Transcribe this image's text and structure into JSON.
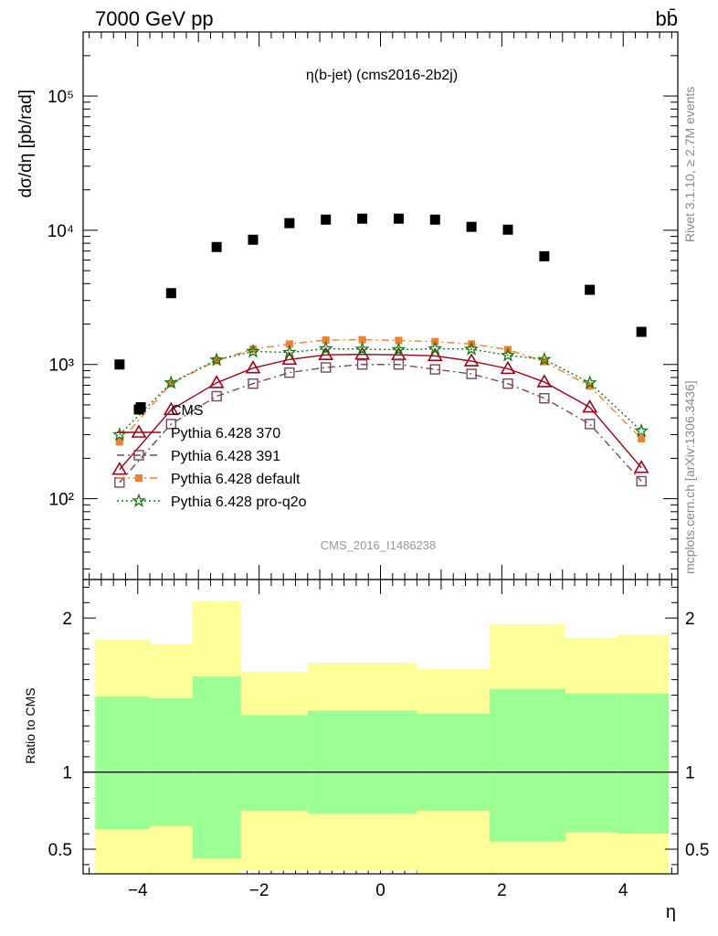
{
  "header": {
    "energy_label": "7000 GeV pp",
    "process_label": "bb̄"
  },
  "side_labels": {
    "rivet": "Rivet 3.1.10, ≥ 2.7M events",
    "mcplots": "mcplots.cern.ch [arXiv:1306.3436]"
  },
  "analysis_id": "CMS_2016_I1486238",
  "chart_data": [
    {
      "type": "scatter",
      "title": "η(b-jet) (cms2016-2b2j)",
      "ylabel": "dσ/dη [pb/rad]",
      "xlabel": "",
      "yscale": "log",
      "xlim": [
        -4.9,
        4.9
      ],
      "ylim": [
        25,
        300000
      ],
      "yticks": [
        100,
        1000,
        10000,
        100000
      ],
      "ytick_labels": [
        "10²",
        "10³",
        "10⁴",
        "10⁵"
      ],
      "x": [
        -4.3,
        -3.95,
        -3.45,
        -2.7,
        -2.1,
        -1.5,
        -0.9,
        -0.3,
        0.3,
        0.9,
        1.5,
        2.1,
        2.7,
        3.45,
        4.3
      ],
      "series": [
        {
          "name": "CMS",
          "color": "#000000",
          "marker": "square-filled",
          "values": [
            1000,
            480,
            3400,
            7500,
            8500,
            11300,
            12000,
            12200,
            12200,
            12000,
            10600,
            10100,
            6400,
            3600,
            1750
          ]
        },
        {
          "name": "Pythia 6.428 370",
          "color": "#a00018",
          "marker": "triangle-open",
          "line": "solid",
          "values": [
            165,
            null,
            460,
            730,
            940,
            1090,
            1180,
            1190,
            1180,
            1160,
            1060,
            930,
            740,
            480,
            170
          ]
        },
        {
          "name": "Pythia 6.428 391",
          "color": "#744a54",
          "marker": "square-open",
          "line": "dashdot",
          "values": [
            132,
            null,
            360,
            580,
            720,
            870,
            950,
            1000,
            1000,
            920,
            850,
            720,
            560,
            360,
            135
          ]
        },
        {
          "name": "Pythia 6.428 default",
          "color": "#f08030",
          "marker": "square-filled-small",
          "line": "dashdot",
          "values": [
            265,
            null,
            720,
            1070,
            1300,
            1420,
            1520,
            1530,
            1510,
            1480,
            1420,
            1290,
            1050,
            690,
            280
          ]
        },
        {
          "name": "Pythia 6.428 pro-q2o",
          "color": "#107810",
          "marker": "star",
          "line": "dotted",
          "values": [
            300,
            null,
            730,
            1080,
            1250,
            1230,
            1310,
            1300,
            1290,
            1310,
            1300,
            1170,
            1090,
            730,
            320
          ]
        }
      ]
    },
    {
      "type": "area",
      "ylabel": "Ratio to CMS",
      "xlabel": "η",
      "xlim": [
        -4.9,
        4.9
      ],
      "ylim": [
        0.34,
        2.25
      ],
      "xticks": [
        -4,
        -2,
        0,
        2,
        4
      ],
      "xtick_labels": [
        "−4",
        "−2",
        "0",
        "2",
        "4"
      ],
      "yticks": [
        0.5,
        1,
        2
      ],
      "ytick_labels": [
        "0.5",
        "1",
        "2"
      ],
      "bins": [
        {
          "x0": -4.7,
          "x1": -3.8,
          "inner": [
            0.63,
            1.49
          ],
          "outer": [
            0.34,
            1.86
          ]
        },
        {
          "x0": -3.8,
          "x1": -3.1,
          "inner": [
            0.65,
            1.48
          ],
          "outer": [
            0.34,
            1.83
          ]
        },
        {
          "x0": -3.1,
          "x1": -2.3,
          "inner": [
            0.44,
            1.62
          ],
          "outer": [
            0.34,
            2.11
          ]
        },
        {
          "x0": -2.3,
          "x1": -1.2,
          "inner": [
            0.75,
            1.37
          ],
          "outer": [
            0.36,
            1.65
          ]
        },
        {
          "x0": -1.2,
          "x1": 0.6,
          "inner": [
            0.73,
            1.4
          ],
          "outer": [
            0.36,
            1.71
          ]
        },
        {
          "x0": 0.6,
          "x1": 1.8,
          "inner": [
            0.75,
            1.38
          ],
          "outer": [
            0.34,
            1.67
          ]
        },
        {
          "x0": 1.8,
          "x1": 3.05,
          "inner": [
            0.55,
            1.54
          ],
          "outer": [
            0.34,
            1.96
          ]
        },
        {
          "x0": 3.05,
          "x1": 3.9,
          "inner": [
            0.61,
            1.51
          ],
          "outer": [
            0.34,
            1.87
          ]
        },
        {
          "x0": 3.9,
          "x1": 4.75,
          "inner": [
            0.6,
            1.51
          ],
          "outer": [
            0.34,
            1.89
          ]
        }
      ],
      "inner_color": "#9cff94",
      "outer_color": "#ffff99",
      "reference_line": 1
    }
  ]
}
